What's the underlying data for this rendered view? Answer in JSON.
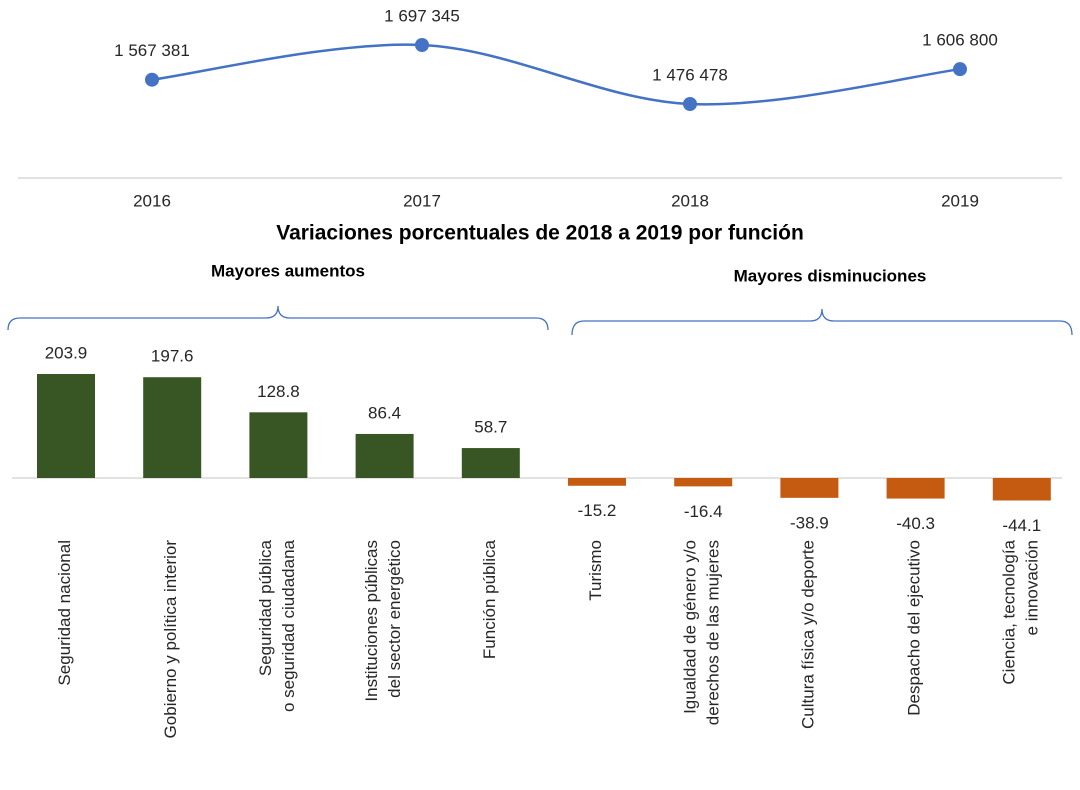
{
  "chart_data": [
    {
      "type": "line",
      "categories": [
        "2016",
        "2017",
        "2018",
        "2019"
      ],
      "values": [
        1567381,
        1697345,
        1476478,
        1606800
      ],
      "value_labels": [
        "1 567 381",
        "1 697 345",
        "1 476 478",
        "1 606 800"
      ],
      "color": "#4472c4"
    },
    {
      "type": "bar",
      "title": "Variaciones porcentuales de 2018 a 2019 por función",
      "annotations": [
        "Mayores aumentos",
        "Mayores disminuciones"
      ],
      "categories": [
        "Seguridad nacional",
        "Gobierno y política interior",
        "Seguridad pública\no seguridad ciudadana",
        "Instituciones públicas\ndel sector energético",
        "Función pública",
        "Turismo",
        "Igualdad de género y/o\nderechos de las mujeres",
        "Cultura física y/o deporte",
        "Despacho del ejecutivo",
        "Ciencia, tecnología\ne innovación"
      ],
      "values": [
        203.9,
        197.6,
        128.8,
        86.4,
        58.7,
        -15.2,
        -16.4,
        -38.9,
        -40.3,
        -44.1
      ],
      "color": "#375623",
      "negative_color": "#c55a11"
    }
  ]
}
